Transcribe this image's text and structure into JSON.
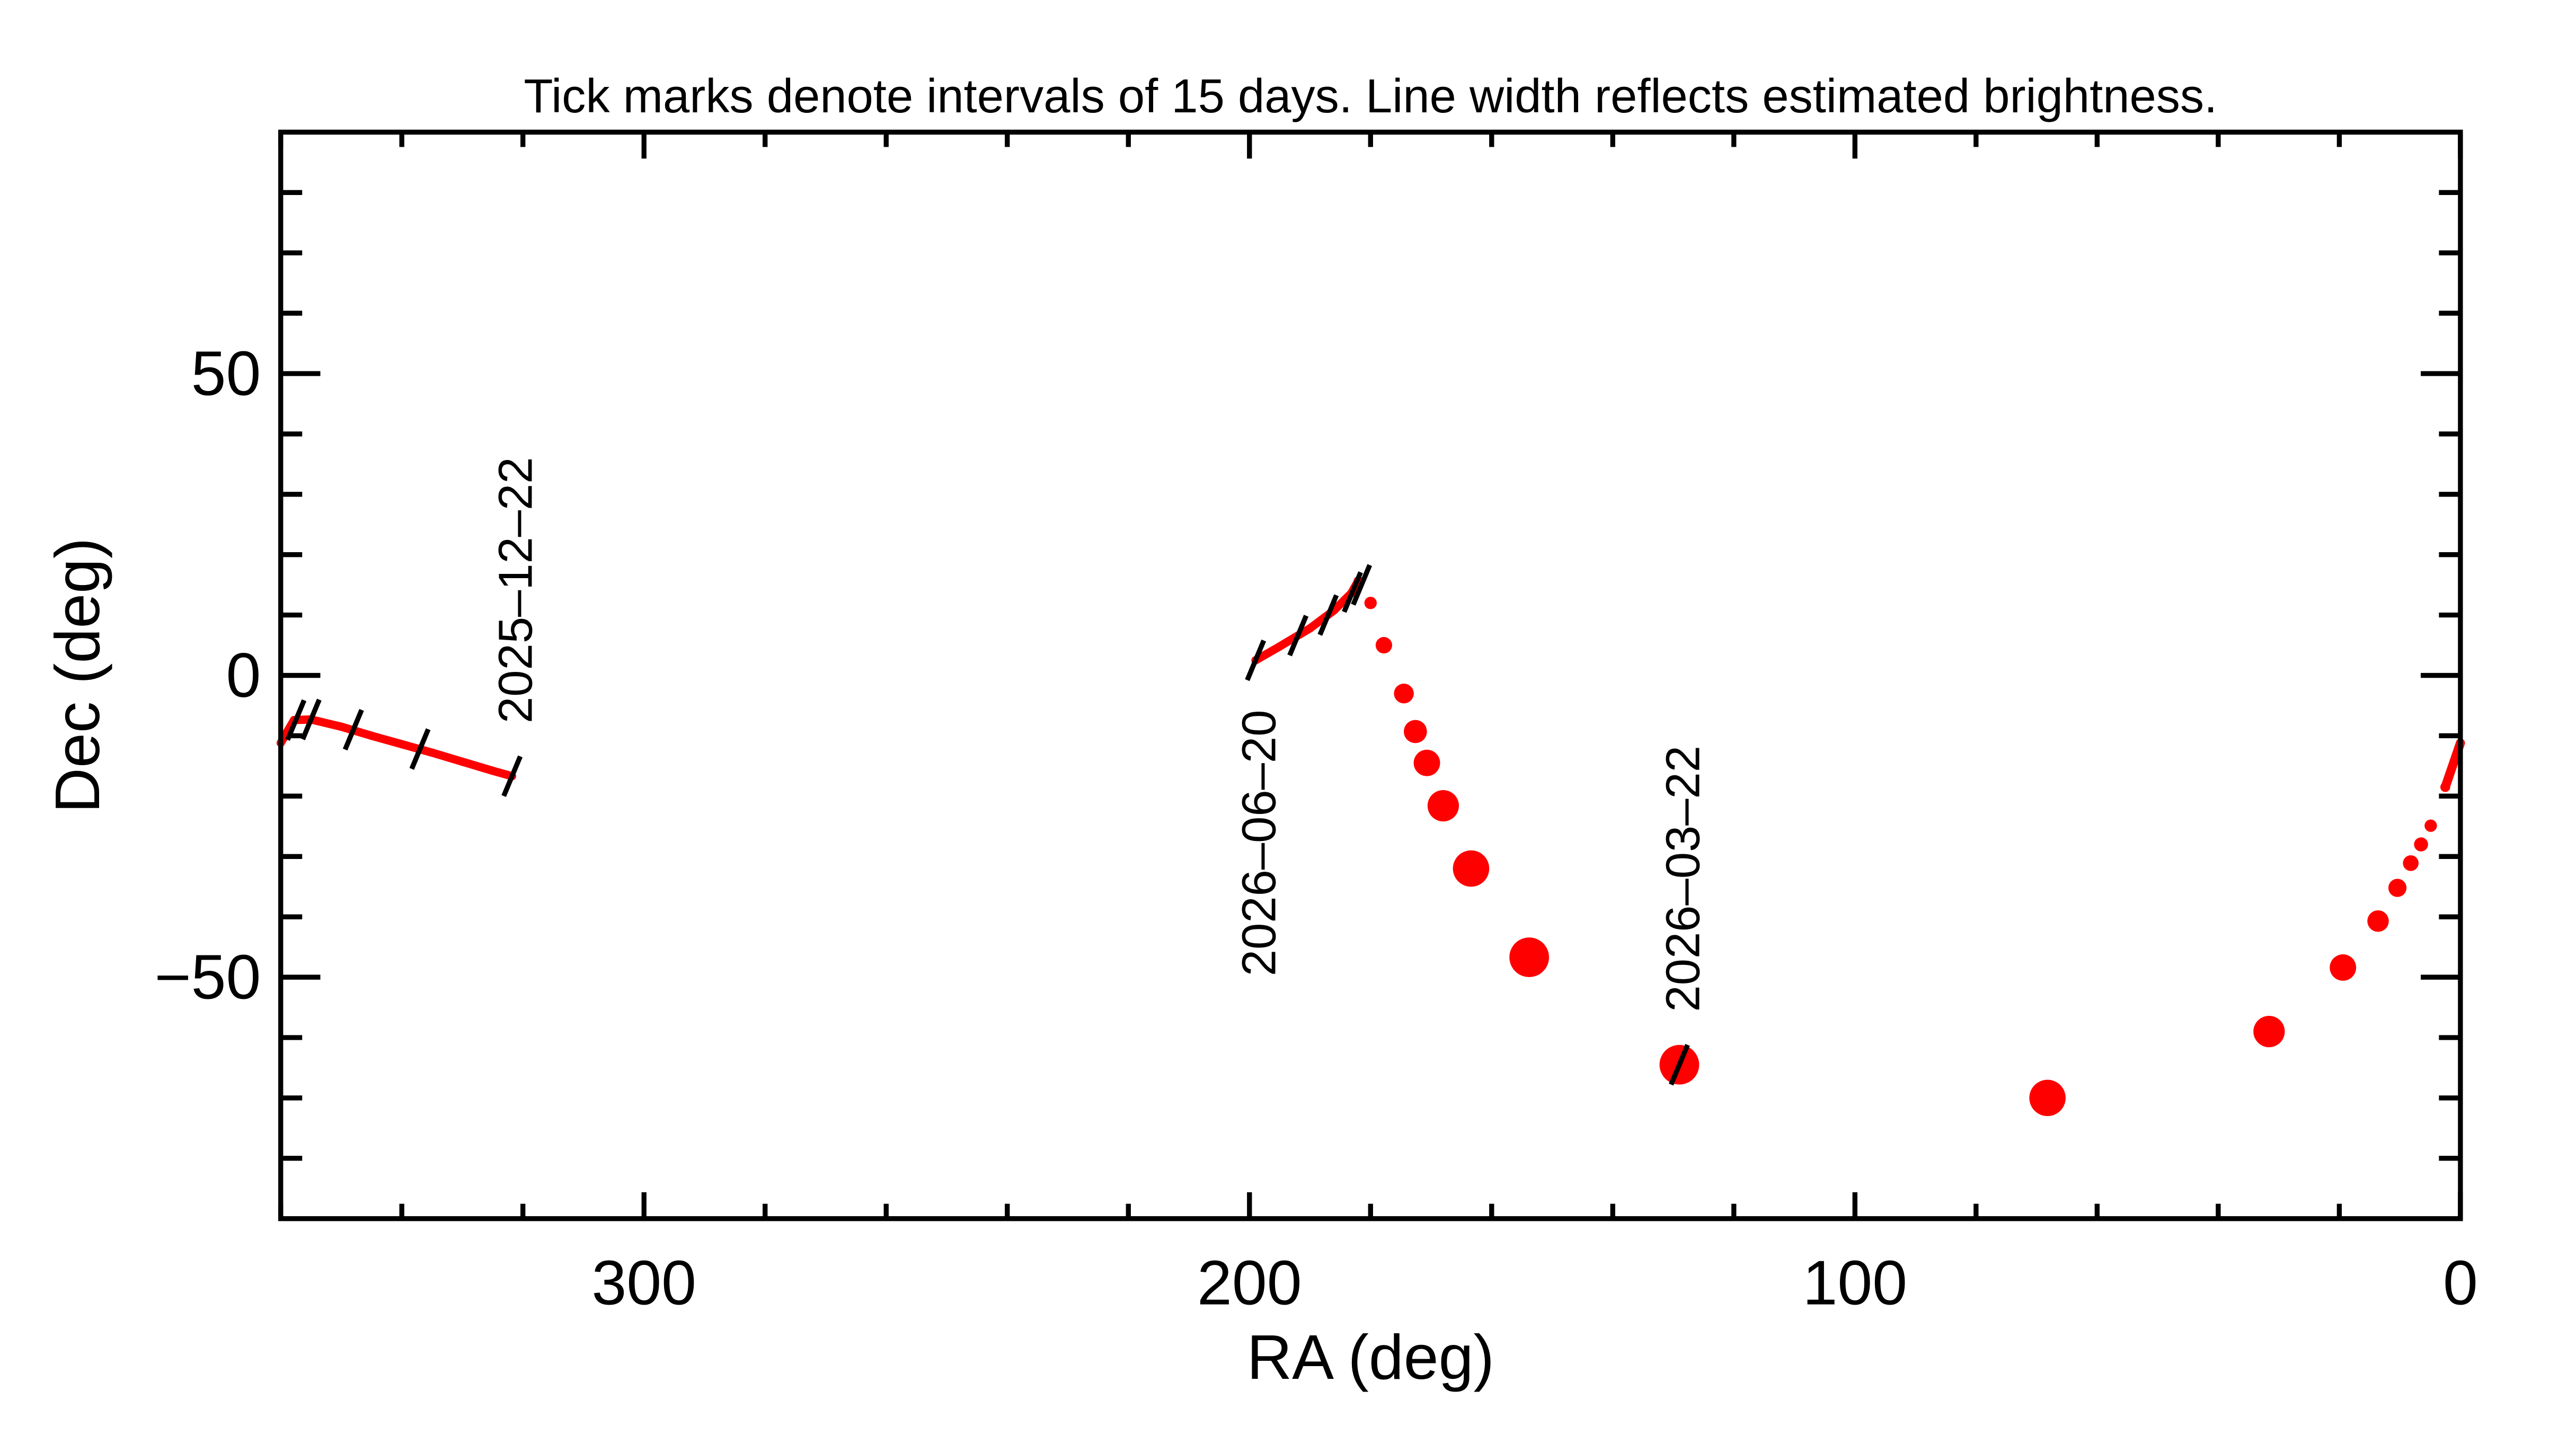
{
  "chart_data": {
    "type": "line",
    "title": "Tick marks denote intervals of 15 days.  Line width reflects estimated brightness.",
    "xlabel": "RA (deg)",
    "ylabel": "Dec (deg)",
    "xlim": [
      360,
      0
    ],
    "ylim": [
      -90,
      90
    ],
    "x_reversed": true,
    "x_ticks": [
      300,
      200,
      100,
      0
    ],
    "x_tick_labels": [
      "300",
      "200",
      "100",
      "0"
    ],
    "x_minor_step": 20,
    "y_ticks": [
      50,
      0,
      -50
    ],
    "y_tick_labels": [
      "50",
      "0",
      "−50"
    ],
    "y_minor_step": 10,
    "grid": false,
    "line_color": "#ff0000",
    "tick_color": "#000000",
    "segments": [
      {
        "points": [
          [
            360,
            -11.2
          ],
          [
            357.8,
            -7.4
          ],
          [
            355,
            -7.3
          ],
          [
            350,
            -8.5
          ],
          [
            345,
            -10
          ],
          [
            340,
            -11.4
          ],
          [
            335,
            -12.8
          ],
          [
            330,
            -14.3
          ],
          [
            325,
            -15.8
          ],
          [
            321.8,
            -16.7
          ]
        ],
        "relative_width": [
          1,
          1,
          1,
          1,
          1,
          1,
          1,
          1,
          1,
          1
        ]
      },
      {
        "points": [
          [
            199,
            2.5
          ],
          [
            195,
            4.8
          ],
          [
            190,
            7.8
          ],
          [
            186,
            10.8
          ],
          [
            183,
            13.8
          ],
          [
            182,
            15.6
          ],
          [
            180,
            12
          ],
          [
            177.8,
            5
          ],
          [
            174.5,
            -3
          ],
          [
            172.6,
            -9.3
          ],
          [
            170.7,
            -14.5
          ],
          [
            168,
            -21.6
          ],
          [
            163.4,
            -32
          ],
          [
            153.8,
            -46.7
          ],
          [
            129,
            -64.5
          ],
          [
            68.2,
            -70
          ],
          [
            31.6,
            -59
          ],
          [
            19.4,
            -48.4
          ],
          [
            13.6,
            -40.7
          ],
          [
            10.4,
            -35.2
          ],
          [
            8.2,
            -31.1
          ],
          [
            6.5,
            -28
          ],
          [
            4.9,
            -24.9
          ],
          [
            2.5,
            -18.5
          ],
          [
            0,
            -11.2
          ]
        ],
        "relative_width": [
          1,
          1,
          1,
          1,
          1,
          1.2,
          1.5,
          2,
          2.4,
          2.8,
          3.2,
          3.8,
          4.4,
          4.8,
          4.8,
          4.4,
          3.8,
          3.2,
          2.6,
          2.2,
          1.9,
          1.7,
          1.5,
          1.2,
          1
        ]
      }
    ],
    "time_ticks": [
      [
        357.5,
        -7.4
      ],
      [
        355,
        -7.3
      ],
      [
        348,
        -9
      ],
      [
        337,
        -12.2
      ],
      [
        321.8,
        -16.7
      ],
      [
        199,
        2.5
      ],
      [
        192,
        6.6
      ],
      [
        187,
        10
      ],
      [
        183,
        13.8
      ],
      [
        181.5,
        15
      ],
      [
        129,
        -64.5
      ]
    ],
    "date_labels": [
      {
        "text": "2025–12–22",
        "ra": 321.8,
        "dec": -16.7,
        "side": "above"
      },
      {
        "text": "2026–06–20",
        "ra": 199,
        "dec": 2.5,
        "side": "below"
      },
      {
        "text": "2026–03–22",
        "ra": 129,
        "dec": -64.5,
        "side": "above"
      }
    ]
  }
}
